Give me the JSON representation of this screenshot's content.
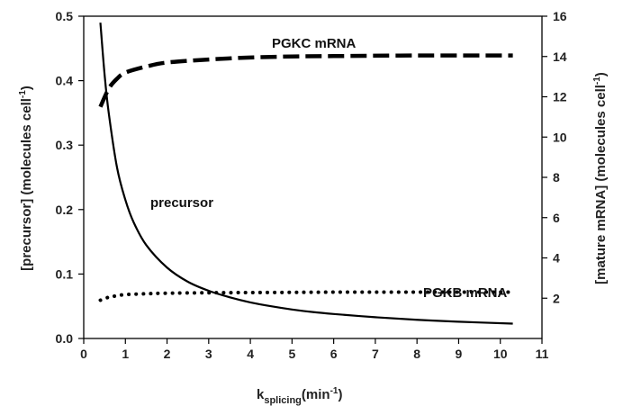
{
  "chart_data": {
    "type": "line",
    "xlabel": {
      "main": "k",
      "sub": "splicing",
      "unit_pre": "(min",
      "unit_sup": "-1",
      "unit_post": ")"
    },
    "ylabel_left": {
      "pre": "[precursor] (molecules cell",
      "sup": "-1",
      "post": ")"
    },
    "ylabel_right": {
      "pre": "[mature mRNA] (molecules cell",
      "sup": "-1",
      "post": ")"
    },
    "xlim": [
      0,
      11
    ],
    "ylim_left": [
      0,
      0.5
    ],
    "ylim_right": [
      0,
      16
    ],
    "x_ticks": [
      "0",
      "1",
      "2",
      "3",
      "4",
      "5",
      "6",
      "7",
      "8",
      "9",
      "10",
      "11"
    ],
    "y_left_ticks": [
      "0.0",
      "0.1",
      "0.2",
      "0.3",
      "0.4",
      "0.5"
    ],
    "y_right_ticks": [
      "2",
      "4",
      "6",
      "8",
      "10",
      "12",
      "14",
      "16"
    ],
    "series": [
      {
        "name": "precursor",
        "axis": "left",
        "style": "solid",
        "x": [
          0.4,
          0.5,
          0.6,
          0.8,
          1.0,
          1.2,
          1.5,
          2.0,
          2.5,
          3.0,
          3.5,
          4.0,
          4.5,
          5.0,
          5.5,
          6.0,
          7.0,
          8.0,
          9.0,
          10.3
        ],
        "y": [
          0.49,
          0.41,
          0.35,
          0.265,
          0.215,
          0.18,
          0.145,
          0.11,
          0.088,
          0.074,
          0.064,
          0.056,
          0.05,
          0.045,
          0.041,
          0.038,
          0.033,
          0.029,
          0.026,
          0.023
        ]
      },
      {
        "name": "PGKC mRNA",
        "axis": "right",
        "style": "dashed",
        "x": [
          0.4,
          0.6,
          0.8,
          1.0,
          1.5,
          2.0,
          3.0,
          4.0,
          5.0,
          6.0,
          8.0,
          10.3
        ],
        "y": [
          11.5,
          12.4,
          12.9,
          13.2,
          13.5,
          13.7,
          13.85,
          13.95,
          14.0,
          14.02,
          14.05,
          14.05
        ]
      },
      {
        "name": "PGKB mRNA",
        "axis": "right",
        "style": "dotted",
        "x": [
          0.4,
          0.6,
          0.8,
          1.0,
          1.5,
          2.0,
          3.0,
          4.0,
          5.0,
          6.0,
          8.0,
          10.3
        ],
        "y": [
          1.9,
          2.05,
          2.12,
          2.18,
          2.22,
          2.25,
          2.27,
          2.28,
          2.29,
          2.3,
          2.3,
          2.3
        ]
      }
    ],
    "annotations": [
      {
        "text": "PGKC mRNA",
        "series": "PGKC mRNA"
      },
      {
        "text": "precursor",
        "series": "precursor"
      },
      {
        "text": "PGKB mRNA",
        "series": "PGKB mRNA"
      }
    ],
    "colors": {
      "lines": "#000000",
      "text": "#222222"
    }
  }
}
